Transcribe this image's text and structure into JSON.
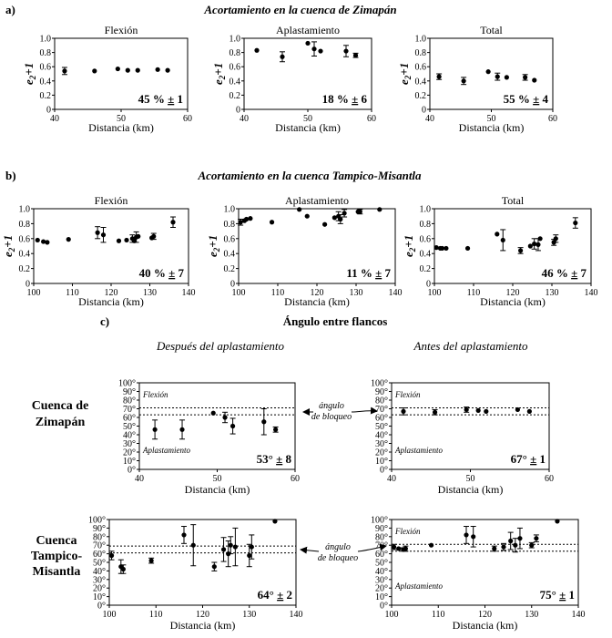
{
  "sections": {
    "a": {
      "label": "a)",
      "title": "Acortamiento en la cuenca de Zimapán"
    },
    "b": {
      "label": "b)",
      "title": "Acortamiento en la cuenca Tampico-Misantla"
    },
    "c": {
      "label": "c)",
      "title": "Ángulo entre flancos"
    }
  },
  "axis_labels": {
    "distance": "Distancia (km)",
    "e2_main": "e",
    "e2_sub": "2",
    "e2_suffix": "+1"
  },
  "column_titles": {
    "despues": "Después del aplastamiento",
    "antes": "Antes del aplastamiento"
  },
  "row_labels": {
    "zimapan": [
      "Cuenca de",
      "Zimapán"
    ],
    "tampico": [
      "Cuenca",
      "Tampico-",
      "Misantla"
    ]
  },
  "annotations": {
    "angulo_de_bloqueo": [
      "ángulo",
      "de bloqueo"
    ],
    "flexion": "Flexión",
    "aplastamiento": "Aplastamiento"
  },
  "colors": {
    "ink": "#000000",
    "background": "#ffffff"
  },
  "chart_data": [
    {
      "id": "a1",
      "type": "scatter",
      "title": "Flexión",
      "xlabel": "Distancia (km)",
      "ylabel": "e2+1",
      "xlim": [
        40,
        60
      ],
      "ylim": [
        0,
        1.0
      ],
      "xticks": [
        "40",
        "50",
        "60"
      ],
      "yticks": [
        "0",
        "0.2",
        "0.4",
        "0.6",
        "0.8",
        "1.0"
      ],
      "x": [
        41.5,
        46,
        49.5,
        51,
        52.5,
        55.5,
        57
      ],
      "y": [
        0.54,
        0.54,
        0.57,
        0.55,
        0.55,
        0.56,
        0.55
      ],
      "err": [
        0.05,
        0,
        0,
        0,
        0,
        0,
        0
      ],
      "percent": "45 %",
      "uncertainty": "1"
    },
    {
      "id": "a2",
      "type": "scatter",
      "title": "Aplastamiento",
      "xlabel": "Distancia (km)",
      "ylabel": "e2+1",
      "xlim": [
        40,
        60
      ],
      "ylim": [
        0,
        1.0
      ],
      "xticks": [
        "40",
        "50",
        "60"
      ],
      "yticks": [
        "0",
        "0.2",
        "0.4",
        "0.6",
        "0.8",
        "1.0"
      ],
      "x": [
        42,
        46,
        50,
        51,
        52,
        56,
        57.5
      ],
      "y": [
        0.83,
        0.74,
        0.93,
        0.85,
        0.82,
        0.82,
        0.76
      ],
      "err": [
        0,
        0.07,
        0,
        0.1,
        0,
        0.08,
        0.03
      ],
      "percent": "18 %",
      "uncertainty": "6"
    },
    {
      "id": "a3",
      "type": "scatter",
      "title": "Total",
      "xlabel": "Distancia (km)",
      "ylabel": "e2+1",
      "xlim": [
        40,
        60
      ],
      "ylim": [
        0,
        1.0
      ],
      "xticks": [
        "40",
        "50",
        "60"
      ],
      "yticks": [
        "0",
        "0.2",
        "0.4",
        "0.6",
        "0.8",
        "1.0"
      ],
      "x": [
        41.5,
        45.5,
        49.5,
        51,
        52.5,
        55.5,
        57
      ],
      "y": [
        0.46,
        0.4,
        0.53,
        0.46,
        0.45,
        0.45,
        0.41
      ],
      "err": [
        0.04,
        0.05,
        0,
        0.05,
        0,
        0.04,
        0
      ],
      "percent": "55 %",
      "uncertainty": "4"
    },
    {
      "id": "b1",
      "type": "scatter",
      "title": "Flexión",
      "xlabel": "Distancia (km)",
      "ylabel": "e2+1",
      "xlim": [
        100,
        140
      ],
      "ylim": [
        0,
        1.0
      ],
      "xticks": [
        "100",
        "110",
        "120",
        "130",
        "140"
      ],
      "yticks": [
        "0",
        "0.2",
        "0.4",
        "0.6",
        "0.8",
        "1.0"
      ],
      "x": [
        101,
        102.5,
        103.5,
        109,
        116.5,
        118,
        122,
        124,
        125.5,
        126,
        126.5,
        127,
        130.5,
        131,
        136
      ],
      "y": [
        0.58,
        0.56,
        0.55,
        0.59,
        0.68,
        0.65,
        0.57,
        0.58,
        0.6,
        0.57,
        0.62,
        0.63,
        0.61,
        0.63,
        0.82
      ],
      "err": [
        0,
        0,
        0,
        0,
        0.08,
        0.1,
        0,
        0,
        0.05,
        0,
        0.07,
        0,
        0,
        0.04,
        0.07
      ],
      "percent": "40 %",
      "uncertainty": "7"
    },
    {
      "id": "b2",
      "type": "scatter",
      "title": "Aplastamiento",
      "xlabel": "Distancia (km)",
      "ylabel": "e2+1",
      "xlim": [
        100,
        140
      ],
      "ylim": [
        0,
        1.0
      ],
      "xticks": [
        "100",
        "110",
        "120",
        "130",
        "140"
      ],
      "yticks": [
        "0",
        "0.2",
        "0.4",
        "0.6",
        "0.8",
        "1.0"
      ],
      "x": [
        100.5,
        101.5,
        102,
        103,
        108.5,
        115.5,
        117.5,
        122,
        124.5,
        125.5,
        126,
        127,
        130.5,
        131,
        136
      ],
      "y": [
        0.82,
        0.84,
        0.86,
        0.87,
        0.82,
        0.99,
        0.9,
        0.79,
        0.88,
        0.9,
        0.86,
        0.94,
        0.96,
        0.96,
        0.99
      ],
      "err": [
        0.04,
        0,
        0,
        0,
        0,
        0,
        0,
        0,
        0,
        0.06,
        0.06,
        0.05,
        0,
        0.03,
        0
      ],
      "percent": "11 %",
      "uncertainty": "7"
    },
    {
      "id": "b3",
      "type": "scatter",
      "title": "Total",
      "xlabel": "Distancia (km)",
      "ylabel": "e2+1",
      "xlim": [
        100,
        140
      ],
      "ylim": [
        0,
        1.0
      ],
      "xticks": [
        "100",
        "110",
        "120",
        "130",
        "140"
      ],
      "yticks": [
        "0",
        "0.2",
        "0.4",
        "0.6",
        "0.8",
        "1.0"
      ],
      "x": [
        100.5,
        101.5,
        102,
        103,
        108.5,
        116,
        117.5,
        122,
        124.5,
        125.5,
        126.5,
        127,
        130.5,
        131,
        136
      ],
      "y": [
        0.48,
        0.47,
        0.47,
        0.47,
        0.47,
        0.66,
        0.58,
        0.44,
        0.5,
        0.53,
        0.52,
        0.6,
        0.55,
        0.6,
        0.81
      ],
      "err": [
        0,
        0,
        0,
        0,
        0,
        0,
        0.14,
        0.04,
        0,
        0.07,
        0.08,
        0,
        0.04,
        0.05,
        0.07
      ],
      "percent": "46 %",
      "uncertainty": "7"
    },
    {
      "id": "c1",
      "type": "scatter",
      "title": "Después del aplastamiento",
      "xlabel": "Distancia (km)",
      "ylabel": "angle",
      "xlim": [
        40,
        60
      ],
      "ylim": [
        0,
        100
      ],
      "xticks": [
        "40",
        "50",
        "60"
      ],
      "yticks": [
        "0°",
        "10°",
        "20°",
        "30°",
        "40°",
        "50°",
        "60°",
        "70°",
        "80°",
        "90°",
        "100°"
      ],
      "reference_lines": [
        63,
        71
      ],
      "x": [
        42,
        45.5,
        49.5,
        51,
        52,
        56,
        57.5
      ],
      "y": [
        46,
        46,
        65,
        60,
        50,
        55,
        46
      ],
      "err": [
        11,
        11,
        0,
        6,
        9,
        15,
        3
      ],
      "value": "53°",
      "uncertainty": "8"
    },
    {
      "id": "c2",
      "type": "scatter",
      "title": "Antes del aplastamiento",
      "xlabel": "Distancia (km)",
      "ylabel": "angle",
      "xlim": [
        40,
        60
      ],
      "ylim": [
        0,
        100
      ],
      "xticks": [
        "40",
        "50",
        "60"
      ],
      "yticks": [
        "0°",
        "10°",
        "20°",
        "30°",
        "40°",
        "50°",
        "60°",
        "70°",
        "80°",
        "90°",
        "100°"
      ],
      "reference_lines": [
        63,
        71
      ],
      "x": [
        41.5,
        45.5,
        49.5,
        51,
        52,
        56,
        57.5
      ],
      "y": [
        67,
        66,
        69,
        68,
        67,
        69,
        67
      ],
      "err": [
        4,
        3,
        3,
        0,
        0,
        0,
        0
      ],
      "value": "67°",
      "uncertainty": "1"
    },
    {
      "id": "c3",
      "type": "scatter",
      "title": "",
      "xlabel": "Distancia (km)",
      "ylabel": "angle",
      "xlim": [
        100,
        140
      ],
      "ylim": [
        0,
        100
      ],
      "xticks": [
        "100",
        "110",
        "120",
        "130",
        "140"
      ],
      "yticks": [
        "0°",
        "10°",
        "20°",
        "30°",
        "40°",
        "50°",
        "60°",
        "70°",
        "80°",
        "90°",
        "100°"
      ],
      "reference_lines": [
        61,
        69
      ],
      "x": [
        100.5,
        102.5,
        103,
        109,
        116,
        118,
        122.5,
        124.5,
        125.5,
        126,
        127,
        130,
        130.5,
        135.5
      ],
      "y": [
        58,
        45,
        42,
        52,
        82,
        70,
        45,
        65,
        60,
        70,
        68,
        58,
        68,
        98
      ],
      "err": [
        5,
        8,
        5,
        3,
        10,
        24,
        5,
        14,
        15,
        10,
        22,
        13,
        14,
        0
      ],
      "value": "64°",
      "uncertainty": "2"
    },
    {
      "id": "c4",
      "type": "scatter",
      "title": "",
      "xlabel": "Distancia (km)",
      "ylabel": "angle",
      "xlim": [
        100,
        140
      ],
      "ylim": [
        0,
        100
      ],
      "xticks": [
        "100",
        "110",
        "120",
        "130",
        "140"
      ],
      "yticks": [
        "0°",
        "10°",
        "20°",
        "30°",
        "40°",
        "50°",
        "60°",
        "70°",
        "80°",
        "90°",
        "100°"
      ],
      "reference_lines": [
        63,
        71
      ],
      "x": [
        100.5,
        101.5,
        102.5,
        103,
        108.5,
        116,
        117.5,
        122,
        124,
        125.5,
        126.5,
        127.5,
        130,
        131,
        135.5
      ],
      "y": [
        68,
        66,
        65,
        66,
        70,
        82,
        80,
        66,
        68,
        75,
        70,
        78,
        70,
        78,
        98
      ],
      "err": [
        3,
        0,
        2,
        3,
        0,
        10,
        12,
        3,
        4,
        10,
        8,
        12,
        3,
        4,
        0
      ],
      "value": "75°",
      "uncertainty": "1"
    }
  ]
}
